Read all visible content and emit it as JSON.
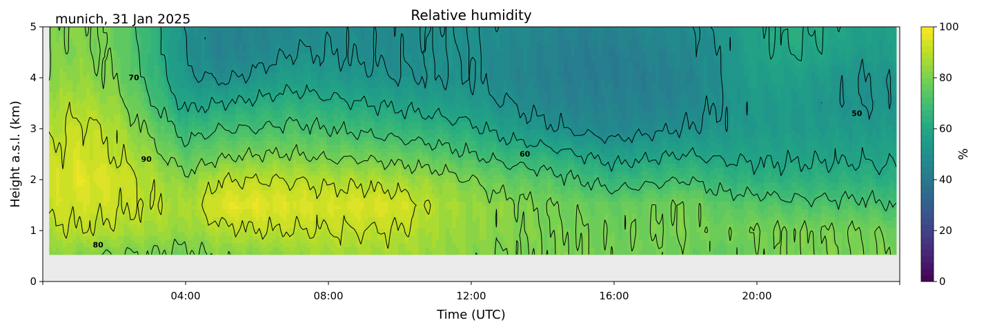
{
  "chart_data": {
    "type": "heatmap",
    "title": "Relative humidity",
    "subtitle": "munich, 31 Jan 2025",
    "xlabel": "Time (UTC)",
    "ylabel": "Height a.s.l. (km)",
    "xlim_hours": [
      0,
      24
    ],
    "ylim_km": [
      0,
      5
    ],
    "x_ticks": [
      {
        "value": 4,
        "label": "04:00"
      },
      {
        "value": 8,
        "label": "08:00"
      },
      {
        "value": 12,
        "label": "12:00"
      },
      {
        "value": 16,
        "label": "16:00"
      },
      {
        "value": 20,
        "label": "20:00"
      }
    ],
    "y_ticks": [
      {
        "value": 0,
        "label": "0"
      },
      {
        "value": 1,
        "label": "1"
      },
      {
        "value": 2,
        "label": "2"
      },
      {
        "value": 3,
        "label": "3"
      },
      {
        "value": 4,
        "label": "4"
      },
      {
        "value": 5,
        "label": "5"
      }
    ],
    "colorbar": {
      "label": "%",
      "range": [
        0,
        100
      ],
      "colormap": "viridis",
      "ticks": [
        {
          "value": 0,
          "label": "0"
        },
        {
          "value": 20,
          "label": "20"
        },
        {
          "value": 40,
          "label": "40"
        },
        {
          "value": 60,
          "label": "60"
        },
        {
          "value": 80,
          "label": "80"
        },
        {
          "value": 100,
          "label": "100"
        }
      ]
    },
    "contour_levels": [
      50,
      60,
      70,
      80,
      90
    ],
    "contour_labels": [
      {
        "level": 70,
        "label": "70",
        "time": 2.55,
        "height": 3.95
      },
      {
        "level": 90,
        "label": "90",
        "time": 2.9,
        "height": 2.35
      },
      {
        "level": 80,
        "label": "80",
        "time": 1.55,
        "height": 0.67
      },
      {
        "level": 60,
        "label": "60",
        "time": 13.5,
        "height": 2.45
      },
      {
        "level": 50,
        "label": "50",
        "time": 22.8,
        "height": 3.25
      }
    ],
    "no_data_below_km": 0.53,
    "no_data_color": "#ebebeb",
    "data_time_range": [
      0.18,
      23.9
    ],
    "grid": {
      "times": [
        0.2,
        1,
        2,
        3,
        4,
        5,
        6,
        7,
        8,
        9,
        10,
        11,
        12,
        13,
        14,
        15,
        16,
        17,
        18,
        19,
        20,
        21,
        22,
        23,
        23.9
      ],
      "heights": [
        0.55,
        1.0,
        1.5,
        2.0,
        2.5,
        3.0,
        3.5,
        4.0,
        4.5,
        5.0
      ],
      "values": [
        [
          84,
          82,
          80,
          80,
          78,
          82,
          82,
          84,
          86,
          86,
          86,
          84,
          82,
          80,
          80,
          80,
          78,
          78,
          78,
          76,
          78,
          80,
          80,
          80,
          80
        ],
        [
          88,
          90,
          88,
          86,
          84,
          88,
          90,
          90,
          90,
          90,
          90,
          86,
          84,
          82,
          80,
          80,
          78,
          80,
          80,
          78,
          80,
          80,
          80,
          80,
          78
        ],
        [
          92,
          93,
          92,
          90,
          86,
          96,
          96,
          95,
          94,
          95,
          94,
          88,
          84,
          82,
          80,
          78,
          76,
          78,
          80,
          74,
          74,
          72,
          72,
          72,
          70
        ],
        [
          92,
          96,
          94,
          88,
          82,
          90,
          90,
          90,
          88,
          88,
          86,
          84,
          80,
          76,
          74,
          70,
          66,
          68,
          70,
          66,
          64,
          64,
          64,
          64,
          62
        ],
        [
          90,
          94,
          90,
          84,
          74,
          78,
          80,
          80,
          78,
          78,
          76,
          74,
          70,
          66,
          64,
          60,
          56,
          58,
          60,
          58,
          58,
          58,
          58,
          58,
          58
        ],
        [
          88,
          92,
          88,
          78,
          66,
          70,
          70,
          72,
          70,
          68,
          66,
          64,
          62,
          56,
          52,
          48,
          46,
          48,
          50,
          52,
          54,
          54,
          54,
          54,
          54
        ],
        [
          86,
          88,
          84,
          72,
          58,
          60,
          62,
          64,
          62,
          60,
          58,
          56,
          54,
          50,
          46,
          44,
          44,
          44,
          46,
          50,
          54,
          54,
          52,
          50,
          52
        ],
        [
          82,
          84,
          80,
          68,
          52,
          48,
          52,
          56,
          54,
          52,
          50,
          50,
          50,
          46,
          44,
          42,
          42,
          42,
          44,
          50,
          56,
          56,
          54,
          50,
          52
        ],
        [
          80,
          82,
          78,
          66,
          50,
          44,
          46,
          50,
          50,
          48,
          48,
          50,
          50,
          46,
          44,
          42,
          42,
          44,
          46,
          50,
          58,
          60,
          58,
          54,
          56
        ],
        [
          80,
          82,
          78,
          66,
          50,
          44,
          44,
          46,
          48,
          48,
          48,
          50,
          50,
          48,
          46,
          44,
          44,
          46,
          48,
          52,
          58,
          62,
          60,
          56,
          56
        ]
      ]
    }
  }
}
